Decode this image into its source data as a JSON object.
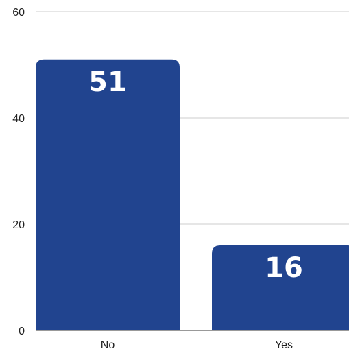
{
  "chart_data": {
    "type": "bar",
    "categories": [
      "No",
      "Yes"
    ],
    "values": [
      51,
      16
    ],
    "title": "",
    "xlabel": "",
    "ylabel": "",
    "ylim": [
      0,
      60
    ],
    "yticks": [
      0,
      20,
      40,
      60
    ],
    "grid": true,
    "legend": "none",
    "bar_color": "#21448f",
    "label_color_inside": "#ffffff",
    "label_color_outside": "#21448f"
  }
}
